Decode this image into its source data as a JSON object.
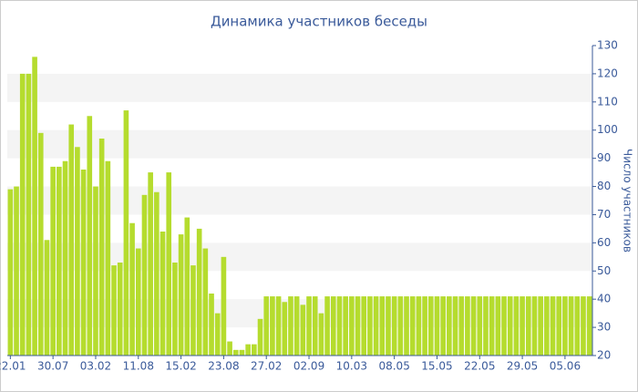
{
  "chart_data": {
    "type": "bar",
    "title": "Динамика участников беседы",
    "y_axis_label": "Число участников",
    "categories": [
      "22.01",
      null,
      null,
      null,
      null,
      null,
      null,
      "30.07",
      null,
      null,
      null,
      null,
      null,
      null,
      "03.02",
      null,
      null,
      null,
      null,
      null,
      null,
      "11.08",
      null,
      null,
      null,
      null,
      null,
      null,
      "15.02",
      null,
      null,
      null,
      null,
      null,
      null,
      "23.08",
      null,
      null,
      null,
      null,
      null,
      null,
      "27.02",
      null,
      null,
      null,
      null,
      null,
      null,
      "02.09",
      null,
      null,
      null,
      null,
      null,
      null,
      "10.03",
      null,
      null,
      null,
      null,
      null,
      null,
      "08.05",
      null,
      null,
      null,
      null,
      null,
      null,
      "15.05",
      null,
      null,
      null,
      null,
      null,
      null,
      "22.05",
      null,
      null,
      null,
      null,
      null,
      null,
      "29.05",
      null,
      null,
      null,
      null,
      null,
      null,
      "05.06",
      null,
      null,
      null,
      null
    ],
    "values": [
      79,
      80,
      120,
      120,
      126,
      99,
      61,
      87,
      87,
      89,
      102,
      94,
      86,
      105,
      80,
      97,
      89,
      52,
      53,
      107,
      67,
      58,
      77,
      85,
      78,
      64,
      85,
      53,
      63,
      69,
      52,
      65,
      58,
      42,
      35,
      55,
      25,
      22,
      22,
      24,
      24,
      33,
      41,
      41,
      41,
      39,
      41,
      41,
      38,
      41,
      41,
      35,
      41,
      41,
      41,
      41,
      41,
      41,
      41,
      41,
      41,
      41,
      41,
      41,
      41,
      41,
      41,
      41,
      41,
      41,
      41,
      41,
      41,
      41,
      41,
      41,
      41,
      41,
      41,
      41,
      41,
      41,
      41,
      41,
      41,
      41,
      41,
      41,
      41,
      41,
      41,
      41,
      41,
      41,
      41,
      41
    ],
    "color": "#b5dc2e",
    "ylim": [
      20,
      130
    ],
    "yticks": [
      20,
      30,
      40,
      50,
      60,
      70,
      80,
      90,
      100,
      110,
      120,
      130
    ],
    "y_axis_side": "right",
    "grid": "bands"
  }
}
